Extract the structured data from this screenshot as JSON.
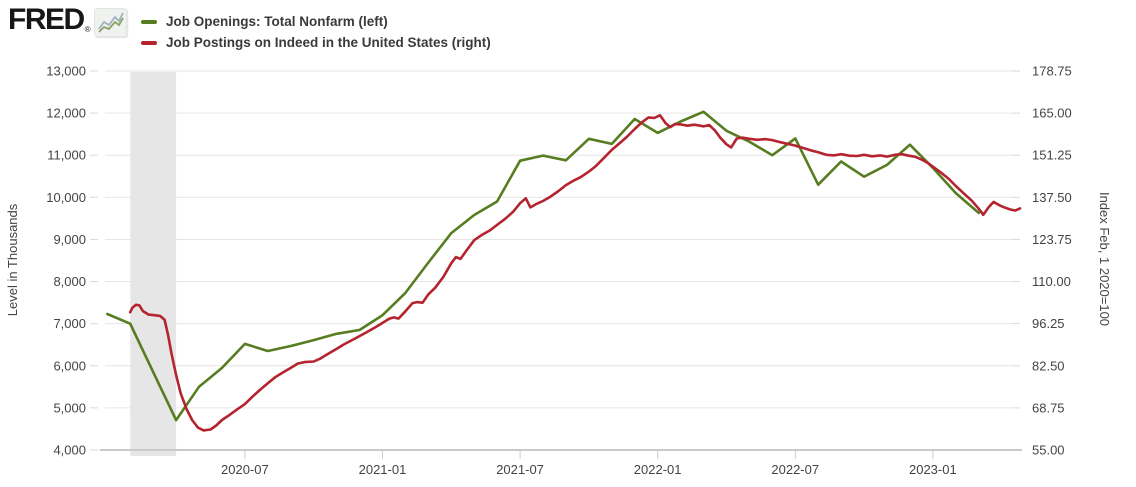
{
  "header": {
    "logo_text": "FRED",
    "logo_reg": "®",
    "logo_icon": "fred-sparkline-icon",
    "legend": [
      {
        "label": "Job Openings: Total Nonfarm (left)",
        "color": "#567d20"
      },
      {
        "label": "Job Postings on Indeed in the United States (right)",
        "color": "#b4232e"
      }
    ]
  },
  "chart_data": {
    "type": "line",
    "title": "",
    "grid": "horizontal-only",
    "background_color": "#ffffff",
    "gridline_color": "#e6e6e6",
    "axis_line_color": "#c9c9c9",
    "recession_band": {
      "start_month_index": 1,
      "end_month_index": 3,
      "color": "#e6e6e6",
      "meaning": "recession shading Feb 2020 - Apr 2020"
    },
    "x_axis": {
      "start_month": "2020-01",
      "months_domain": [
        -0.1,
        39.8
      ],
      "tick_month_indices": [
        6,
        12,
        18,
        24,
        30,
        36
      ],
      "tick_labels": [
        "2020-07",
        "2021-01",
        "2021-07",
        "2022-01",
        "2022-07",
        "2023-01"
      ]
    },
    "left_axis": {
      "label": "Level in Thousands",
      "range": [
        4000,
        13000
      ],
      "tick_values": [
        13000,
        12000,
        11000,
        10000,
        9000,
        8000,
        7000,
        6000,
        5000,
        4000
      ],
      "tick_labels": [
        "13,000",
        "12,000",
        "11,000",
        "10,000",
        "9,000",
        "8,000",
        "7,000",
        "6,000",
        "5,000",
        "4,000"
      ]
    },
    "right_axis": {
      "label": "Index Feb, 1 2020=100",
      "range": [
        55,
        178.75
      ],
      "tick_values": [
        178.75,
        165.0,
        151.25,
        137.5,
        123.75,
        110.0,
        96.25,
        82.5,
        68.75,
        55.0
      ],
      "tick_labels": [
        "178.75",
        "165.00",
        "151.25",
        "137.50",
        "123.75",
        "110.00",
        "96.25",
        "82.50",
        "68.75",
        "55.00"
      ]
    },
    "series": [
      {
        "name": "Job Openings: Total Nonfarm",
        "axis": "left",
        "color": "#567d20",
        "freq": "monthly",
        "start_month_index": 0,
        "values": [
          7230,
          7000,
          5850,
          4710,
          5500,
          5950,
          6520,
          6350,
          6470,
          6610,
          6760,
          6850,
          7200,
          7730,
          8450,
          9150,
          9580,
          9900,
          10870,
          10990,
          10880,
          11390,
          11270,
          11860,
          11530,
          11800,
          12030,
          11580,
          11320,
          11000,
          11400,
          10300,
          10850,
          10490,
          10770,
          11250,
          10700,
          10100,
          9630
        ]
      },
      {
        "name": "Job Postings on Indeed in the United States",
        "axis": "right",
        "color": "#b4232e",
        "freq": "irregular",
        "points": [
          [
            1.0,
            100.0
          ],
          [
            1.1,
            101.5
          ],
          [
            1.25,
            102.4
          ],
          [
            1.4,
            102.2
          ],
          [
            1.55,
            100.4
          ],
          [
            1.8,
            99.2
          ],
          [
            2.05,
            99.0
          ],
          [
            2.3,
            98.8
          ],
          [
            2.5,
            97.5
          ],
          [
            2.65,
            92.5
          ],
          [
            2.8,
            86.5
          ],
          [
            3.0,
            79.5
          ],
          [
            3.2,
            73.5
          ],
          [
            3.45,
            68.5
          ],
          [
            3.7,
            64.8
          ],
          [
            3.95,
            62.3
          ],
          [
            4.2,
            61.4
          ],
          [
            4.5,
            61.7
          ],
          [
            4.75,
            63.0
          ],
          [
            5.0,
            64.8
          ],
          [
            5.3,
            66.3
          ],
          [
            5.65,
            68.2
          ],
          [
            6.0,
            70.0
          ],
          [
            6.3,
            72.2
          ],
          [
            6.65,
            74.6
          ],
          [
            7.0,
            76.8
          ],
          [
            7.35,
            78.9
          ],
          [
            7.7,
            80.5
          ],
          [
            8.0,
            81.8
          ],
          [
            8.3,
            83.2
          ],
          [
            8.6,
            83.7
          ],
          [
            9.0,
            83.9
          ],
          [
            9.3,
            84.9
          ],
          [
            9.65,
            86.5
          ],
          [
            10.0,
            88.0
          ],
          [
            10.3,
            89.4
          ],
          [
            10.65,
            90.8
          ],
          [
            11.0,
            92.2
          ],
          [
            11.3,
            93.4
          ],
          [
            11.65,
            94.9
          ],
          [
            12.0,
            96.5
          ],
          [
            12.3,
            97.9
          ],
          [
            12.5,
            98.3
          ],
          [
            12.7,
            97.9
          ],
          [
            13.0,
            100.3
          ],
          [
            13.3,
            102.9
          ],
          [
            13.5,
            103.3
          ],
          [
            13.75,
            103.1
          ],
          [
            14.0,
            105.8
          ],
          [
            14.3,
            108.0
          ],
          [
            14.65,
            111.5
          ],
          [
            15.0,
            116.0
          ],
          [
            15.2,
            118.0
          ],
          [
            15.4,
            117.4
          ],
          [
            15.7,
            120.5
          ],
          [
            16.0,
            123.5
          ],
          [
            16.35,
            125.3
          ],
          [
            16.7,
            126.8
          ],
          [
            17.0,
            128.5
          ],
          [
            17.35,
            130.5
          ],
          [
            17.7,
            132.8
          ],
          [
            18.0,
            135.6
          ],
          [
            18.25,
            137.2
          ],
          [
            18.45,
            134.2
          ],
          [
            18.7,
            135.3
          ],
          [
            19.0,
            136.3
          ],
          [
            19.3,
            137.6
          ],
          [
            19.65,
            139.4
          ],
          [
            20.0,
            141.5
          ],
          [
            20.3,
            142.8
          ],
          [
            20.65,
            144.1
          ],
          [
            21.0,
            145.9
          ],
          [
            21.3,
            147.7
          ],
          [
            21.65,
            150.3
          ],
          [
            22.0,
            153.0
          ],
          [
            22.3,
            154.9
          ],
          [
            22.65,
            157.2
          ],
          [
            23.0,
            159.8
          ],
          [
            23.3,
            161.9
          ],
          [
            23.6,
            163.6
          ],
          [
            23.85,
            163.4
          ],
          [
            24.1,
            164.3
          ],
          [
            24.35,
            161.7
          ],
          [
            24.55,
            160.4
          ],
          [
            24.75,
            161.4
          ],
          [
            25.0,
            161.3
          ],
          [
            25.3,
            160.9
          ],
          [
            25.6,
            161.2
          ],
          [
            26.0,
            160.7
          ],
          [
            26.25,
            161.1
          ],
          [
            26.5,
            159.3
          ],
          [
            26.75,
            156.8
          ],
          [
            27.0,
            154.8
          ],
          [
            27.2,
            153.8
          ],
          [
            27.45,
            156.7
          ],
          [
            27.7,
            157.0
          ],
          [
            28.0,
            156.6
          ],
          [
            28.35,
            156.3
          ],
          [
            28.7,
            156.5
          ],
          [
            29.0,
            156.2
          ],
          [
            29.35,
            155.5
          ],
          [
            29.7,
            154.9
          ],
          [
            30.0,
            154.4
          ],
          [
            30.35,
            153.6
          ],
          [
            30.7,
            152.8
          ],
          [
            31.0,
            152.2
          ],
          [
            31.35,
            151.4
          ],
          [
            31.7,
            151.2
          ],
          [
            32.0,
            151.6
          ],
          [
            32.35,
            151.1
          ],
          [
            32.7,
            151.0
          ],
          [
            33.0,
            151.4
          ],
          [
            33.35,
            150.9
          ],
          [
            33.7,
            151.2
          ],
          [
            34.0,
            150.8
          ],
          [
            34.35,
            151.4
          ],
          [
            34.65,
            151.6
          ],
          [
            34.95,
            151.1
          ],
          [
            35.25,
            150.7
          ],
          [
            35.55,
            149.7
          ],
          [
            35.8,
            148.6
          ],
          [
            36.0,
            147.5
          ],
          [
            36.35,
            145.6
          ],
          [
            36.7,
            143.5
          ],
          [
            37.0,
            141.2
          ],
          [
            37.35,
            138.8
          ],
          [
            37.7,
            136.4
          ],
          [
            38.0,
            133.8
          ],
          [
            38.2,
            131.8
          ],
          [
            38.45,
            134.4
          ],
          [
            38.65,
            136.0
          ],
          [
            38.9,
            134.9
          ],
          [
            39.15,
            134.1
          ],
          [
            39.4,
            133.5
          ],
          [
            39.6,
            133.2
          ],
          [
            39.8,
            133.9
          ]
        ]
      }
    ]
  }
}
